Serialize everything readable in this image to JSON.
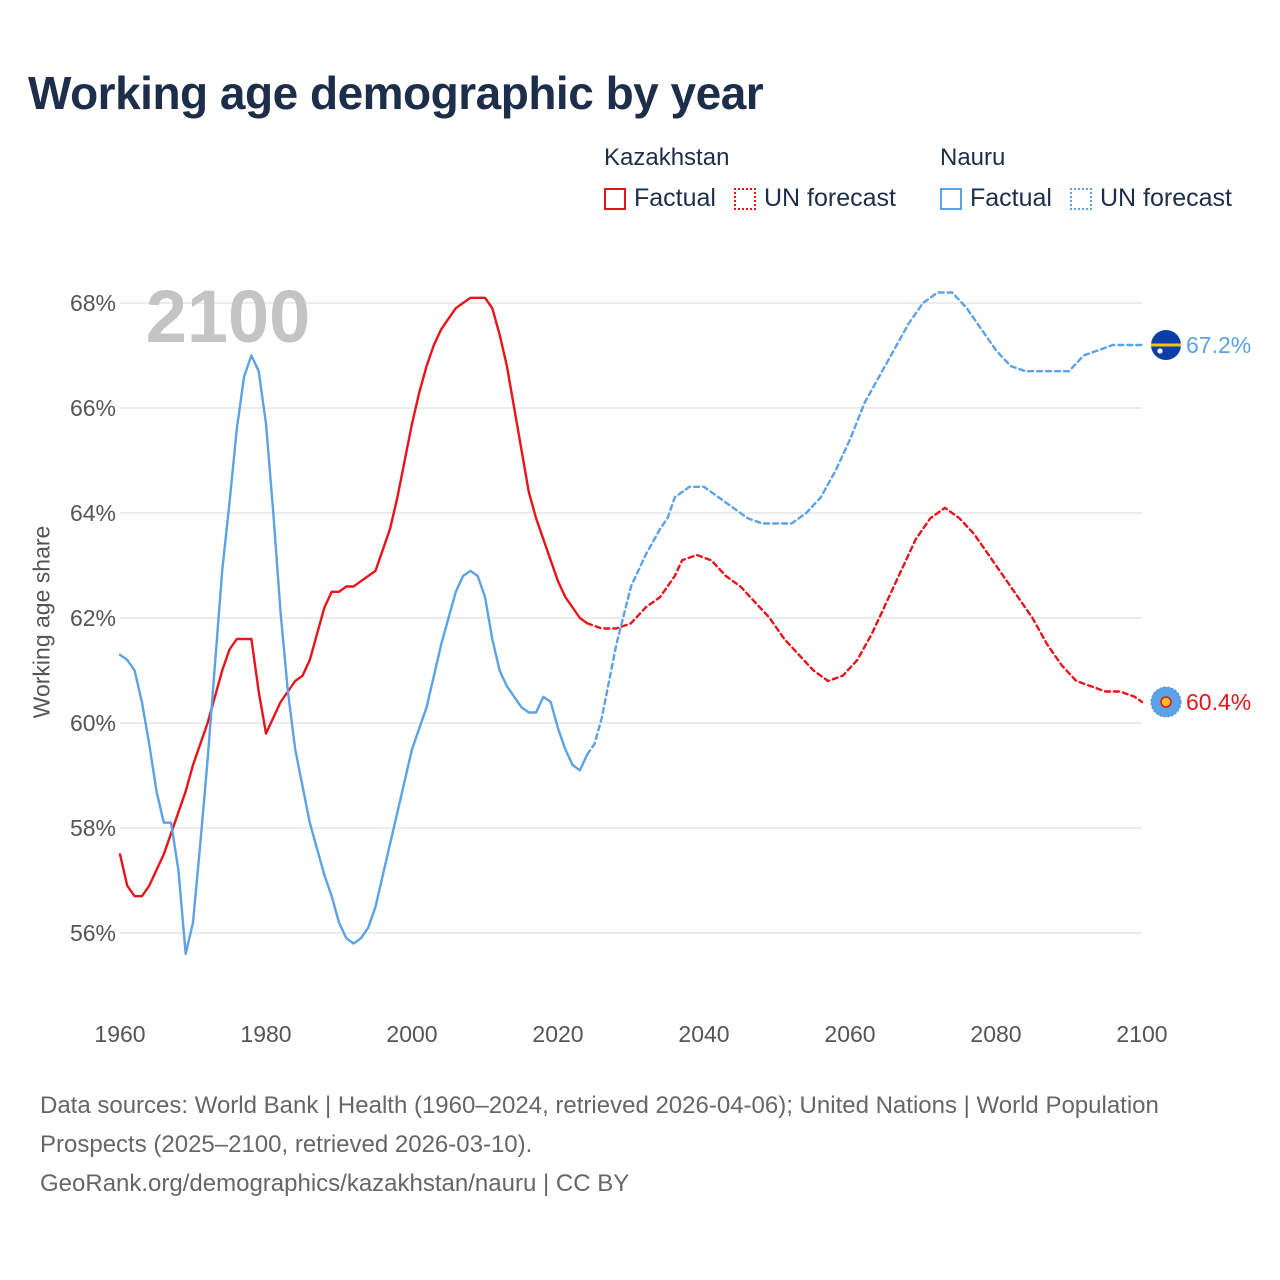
{
  "title": "Working age demographic by year",
  "legend": {
    "groups": [
      {
        "name": "Kazakhstan",
        "color": "#e8141c",
        "factual_label": "Factual",
        "forecast_label": "UN forecast"
      },
      {
        "name": "Nauru",
        "color": "#5ba3e6",
        "factual_label": "Factual",
        "forecast_label": "UN forecast"
      }
    ]
  },
  "year_watermark": "2100",
  "end_labels": {
    "nauru": "67.2%",
    "kazakhstan": "60.4%"
  },
  "footer": {
    "line1": "Data sources: World Bank | Health (1960–2024, retrieved 2026-04-06); United Nations | World Population Prospects (2025–2100, retrieved 2026-03-10).",
    "line2": "GeoRank.org/demographics/kazakhstan/nauru | CC BY"
  },
  "chart_data": {
    "type": "line",
    "title": "Working age demographic by year",
    "xlabel": "",
    "ylabel": "Working age share",
    "xlim": [
      1960,
      2100
    ],
    "ylim": [
      55,
      69
    ],
    "x_ticks": [
      1960,
      1980,
      2000,
      2020,
      2040,
      2060,
      2080,
      2100
    ],
    "y_ticks": [
      56,
      58,
      60,
      62,
      64,
      66,
      68
    ],
    "y_tick_labels": [
      "56%",
      "58%",
      "60%",
      "62%",
      "64%",
      "66%",
      "68%"
    ],
    "grid": true,
    "series": [
      {
        "name": "Kazakhstan",
        "style": "Factual",
        "color": "#e8141c",
        "points": [
          [
            1960,
            57.5
          ],
          [
            1961,
            56.9
          ],
          [
            1962,
            56.7
          ],
          [
            1963,
            56.7
          ],
          [
            1964,
            56.9
          ],
          [
            1965,
            57.2
          ],
          [
            1966,
            57.5
          ],
          [
            1967,
            57.9
          ],
          [
            1968,
            58.3
          ],
          [
            1969,
            58.7
          ],
          [
            1970,
            59.2
          ],
          [
            1971,
            59.6
          ],
          [
            1972,
            60.0
          ],
          [
            1973,
            60.5
          ],
          [
            1974,
            61.0
          ],
          [
            1975,
            61.4
          ],
          [
            1976,
            61.6
          ],
          [
            1977,
            61.6
          ],
          [
            1978,
            61.6
          ],
          [
            1979,
            60.6
          ],
          [
            1980,
            59.8
          ],
          [
            1981,
            60.1
          ],
          [
            1982,
            60.4
          ],
          [
            1983,
            60.6
          ],
          [
            1984,
            60.8
          ],
          [
            1985,
            60.9
          ],
          [
            1986,
            61.2
          ],
          [
            1987,
            61.7
          ],
          [
            1988,
            62.2
          ],
          [
            1989,
            62.5
          ],
          [
            1990,
            62.5
          ],
          [
            1991,
            62.6
          ],
          [
            1992,
            62.6
          ],
          [
            1993,
            62.7
          ],
          [
            1994,
            62.8
          ],
          [
            1995,
            62.9
          ],
          [
            1996,
            63.3
          ],
          [
            1997,
            63.7
          ],
          [
            1998,
            64.3
          ],
          [
            1999,
            65.0
          ],
          [
            2000,
            65.7
          ],
          [
            2001,
            66.3
          ],
          [
            2002,
            66.8
          ],
          [
            2003,
            67.2
          ],
          [
            2004,
            67.5
          ],
          [
            2005,
            67.7
          ],
          [
            2006,
            67.9
          ],
          [
            2007,
            68.0
          ],
          [
            2008,
            68.1
          ],
          [
            2009,
            68.1
          ],
          [
            2010,
            68.1
          ],
          [
            2011,
            67.9
          ],
          [
            2012,
            67.4
          ],
          [
            2013,
            66.8
          ],
          [
            2014,
            66.0
          ],
          [
            2015,
            65.2
          ],
          [
            2016,
            64.4
          ],
          [
            2017,
            63.9
          ],
          [
            2018,
            63.5
          ],
          [
            2019,
            63.1
          ],
          [
            2020,
            62.7
          ],
          [
            2021,
            62.4
          ],
          [
            2022,
            62.2
          ],
          [
            2023,
            62.0
          ],
          [
            2024,
            61.9
          ]
        ]
      },
      {
        "name": "Kazakhstan",
        "style": "UN forecast",
        "color": "#e8141c",
        "points": [
          [
            2024,
            61.9
          ],
          [
            2026,
            61.8
          ],
          [
            2028,
            61.8
          ],
          [
            2030,
            61.9
          ],
          [
            2032,
            62.2
          ],
          [
            2034,
            62.4
          ],
          [
            2036,
            62.8
          ],
          [
            2037,
            63.1
          ],
          [
            2039,
            63.2
          ],
          [
            2041,
            63.1
          ],
          [
            2043,
            62.8
          ],
          [
            2045,
            62.6
          ],
          [
            2047,
            62.3
          ],
          [
            2049,
            62.0
          ],
          [
            2051,
            61.6
          ],
          [
            2053,
            61.3
          ],
          [
            2055,
            61.0
          ],
          [
            2057,
            60.8
          ],
          [
            2059,
            60.9
          ],
          [
            2061,
            61.2
          ],
          [
            2063,
            61.7
          ],
          [
            2065,
            62.3
          ],
          [
            2067,
            62.9
          ],
          [
            2069,
            63.5
          ],
          [
            2071,
            63.9
          ],
          [
            2073,
            64.1
          ],
          [
            2075,
            63.9
          ],
          [
            2077,
            63.6
          ],
          [
            2079,
            63.2
          ],
          [
            2081,
            62.8
          ],
          [
            2083,
            62.4
          ],
          [
            2085,
            62.0
          ],
          [
            2087,
            61.5
          ],
          [
            2089,
            61.1
          ],
          [
            2091,
            60.8
          ],
          [
            2093,
            60.7
          ],
          [
            2095,
            60.6
          ],
          [
            2097,
            60.6
          ],
          [
            2099,
            60.5
          ],
          [
            2100,
            60.4
          ]
        ]
      },
      {
        "name": "Nauru",
        "style": "Factual",
        "color": "#5ba3e6",
        "points": [
          [
            1960,
            61.3
          ],
          [
            1961,
            61.2
          ],
          [
            1962,
            61.0
          ],
          [
            1963,
            60.4
          ],
          [
            1964,
            59.6
          ],
          [
            1965,
            58.7
          ],
          [
            1966,
            58.1
          ],
          [
            1967,
            58.1
          ],
          [
            1968,
            57.2
          ],
          [
            1969,
            55.6
          ],
          [
            1970,
            56.2
          ],
          [
            1971,
            57.7
          ],
          [
            1972,
            59.3
          ],
          [
            1973,
            61.1
          ],
          [
            1974,
            62.9
          ],
          [
            1975,
            64.2
          ],
          [
            1976,
            65.6
          ],
          [
            1977,
            66.6
          ],
          [
            1978,
            67.0
          ],
          [
            1979,
            66.7
          ],
          [
            1980,
            65.7
          ],
          [
            1981,
            64.0
          ],
          [
            1982,
            62.1
          ],
          [
            1983,
            60.6
          ],
          [
            1984,
            59.5
          ],
          [
            1985,
            58.8
          ],
          [
            1986,
            58.1
          ],
          [
            1987,
            57.6
          ],
          [
            1988,
            57.1
          ],
          [
            1989,
            56.7
          ],
          [
            1990,
            56.2
          ],
          [
            1991,
            55.9
          ],
          [
            1992,
            55.8
          ],
          [
            1993,
            55.9
          ],
          [
            1994,
            56.1
          ],
          [
            1995,
            56.5
          ],
          [
            1996,
            57.1
          ],
          [
            1997,
            57.7
          ],
          [
            1998,
            58.3
          ],
          [
            1999,
            58.9
          ],
          [
            2000,
            59.5
          ],
          [
            2001,
            59.9
          ],
          [
            2002,
            60.3
          ],
          [
            2003,
            60.9
          ],
          [
            2004,
            61.5
          ],
          [
            2005,
            62.0
          ],
          [
            2006,
            62.5
          ],
          [
            2007,
            62.8
          ],
          [
            2008,
            62.9
          ],
          [
            2009,
            62.8
          ],
          [
            2010,
            62.4
          ],
          [
            2011,
            61.6
          ],
          [
            2012,
            61.0
          ],
          [
            2013,
            60.7
          ],
          [
            2014,
            60.5
          ],
          [
            2015,
            60.3
          ],
          [
            2016,
            60.2
          ],
          [
            2017,
            60.2
          ],
          [
            2018,
            60.5
          ],
          [
            2019,
            60.4
          ],
          [
            2020,
            59.9
          ],
          [
            2021,
            59.5
          ],
          [
            2022,
            59.2
          ],
          [
            2023,
            59.1
          ],
          [
            2024,
            59.4
          ]
        ]
      },
      {
        "name": "Nauru",
        "style": "UN forecast",
        "color": "#5ba3e6",
        "points": [
          [
            2024,
            59.4
          ],
          [
            2025,
            59.6
          ],
          [
            2026,
            60.1
          ],
          [
            2027,
            60.8
          ],
          [
            2028,
            61.5
          ],
          [
            2030,
            62.6
          ],
          [
            2032,
            63.2
          ],
          [
            2034,
            63.7
          ],
          [
            2035,
            63.9
          ],
          [
            2036,
            64.3
          ],
          [
            2038,
            64.5
          ],
          [
            2040,
            64.5
          ],
          [
            2042,
            64.3
          ],
          [
            2044,
            64.1
          ],
          [
            2046,
            63.9
          ],
          [
            2048,
            63.8
          ],
          [
            2050,
            63.8
          ],
          [
            2052,
            63.8
          ],
          [
            2054,
            64.0
          ],
          [
            2056,
            64.3
          ],
          [
            2058,
            64.8
          ],
          [
            2060,
            65.4
          ],
          [
            2062,
            66.1
          ],
          [
            2064,
            66.6
          ],
          [
            2066,
            67.1
          ],
          [
            2068,
            67.6
          ],
          [
            2070,
            68.0
          ],
          [
            2072,
            68.2
          ],
          [
            2074,
            68.2
          ],
          [
            2076,
            67.9
          ],
          [
            2078,
            67.5
          ],
          [
            2080,
            67.1
          ],
          [
            2082,
            66.8
          ],
          [
            2084,
            66.7
          ],
          [
            2086,
            66.7
          ],
          [
            2088,
            66.7
          ],
          [
            2090,
            66.7
          ],
          [
            2092,
            67.0
          ],
          [
            2094,
            67.1
          ],
          [
            2096,
            67.2
          ],
          [
            2098,
            67.2
          ],
          [
            2100,
            67.2
          ]
        ]
      }
    ]
  }
}
